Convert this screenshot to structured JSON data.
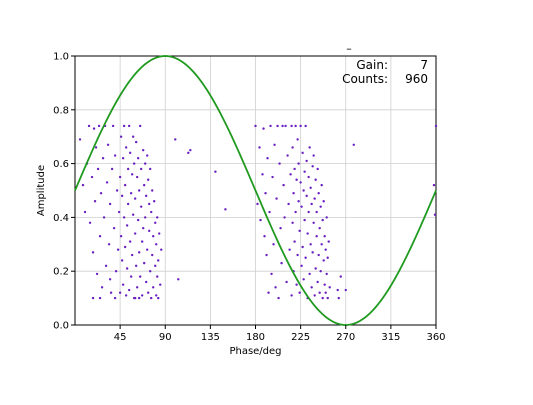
{
  "chart_data": {
    "type": "scatter",
    "xlabel": "Phase/deg",
    "ylabel": "Amplitude",
    "xlim": [
      0,
      360
    ],
    "ylim": [
      0,
      1.0
    ],
    "xticks": [
      45,
      90,
      135,
      180,
      225,
      270,
      315,
      360
    ],
    "xtick_labels": [
      "45",
      "90",
      "135",
      "180",
      "225",
      "270",
      "315",
      "360"
    ],
    "yticks": [
      0.0,
      0.2,
      0.4,
      0.6,
      0.8,
      1.0
    ],
    "ytick_labels": [
      "0.0",
      "0.2",
      "0.4",
      "0.6",
      "0.8",
      "1.0"
    ],
    "grid": true,
    "annotation": {
      "mark": "–",
      "rows": [
        {
          "label": "Gain:",
          "value": "7"
        },
        {
          "label": "Counts:",
          "value": "960"
        }
      ]
    },
    "series": [
      {
        "kind": "line",
        "color": "#1f9a1f",
        "function": "0.5 + 0.5*sin(x)",
        "note": "sine fit, peak at 90 deg, minimum at 270 deg"
      },
      {
        "kind": "scatter",
        "color": "#6a1fc0",
        "points": [
          [
            5,
            0.69
          ],
          [
            8,
            0.52
          ],
          [
            10,
            0.42
          ],
          [
            12,
            0.6
          ],
          [
            14,
            0.74
          ],
          [
            15,
            0.38
          ],
          [
            17,
            0.55
          ],
          [
            18,
            0.27
          ],
          [
            19,
            0.73
          ],
          [
            20,
            0.46
          ],
          [
            21,
            0.66
          ],
          [
            22,
            0.19
          ],
          [
            23,
            0.58
          ],
          [
            24,
            0.74
          ],
          [
            25,
            0.33
          ],
          [
            26,
            0.49
          ],
          [
            27,
            0.14
          ],
          [
            28,
            0.62
          ],
          [
            29,
            0.4
          ],
          [
            30,
            0.74
          ],
          [
            31,
            0.22
          ],
          [
            32,
            0.53
          ],
          [
            33,
            0.67
          ],
          [
            34,
            0.3
          ],
          [
            35,
            0.45
          ],
          [
            36,
            0.12
          ],
          [
            37,
            0.58
          ],
          [
            38,
            0.74
          ],
          [
            39,
            0.36
          ],
          [
            40,
            0.63
          ],
          [
            41,
            0.2
          ],
          [
            42,
            0.5
          ],
          [
            43,
            0.28
          ],
          [
            44,
            0.42
          ],
          [
            45,
            0.12
          ],
          [
            45,
            0.55
          ],
          [
            46,
            0.7
          ],
          [
            46,
            0.33
          ],
          [
            47,
            0.24
          ],
          [
            47,
            0.48
          ],
          [
            48,
            0.62
          ],
          [
            48,
            0.15
          ],
          [
            49,
            0.4
          ],
          [
            49,
            0.74
          ],
          [
            50,
            0.29
          ],
          [
            50,
            0.52
          ],
          [
            51,
            0.11
          ],
          [
            51,
            0.66
          ],
          [
            52,
            0.37
          ],
          [
            52,
            0.21
          ],
          [
            53,
            0.58
          ],
          [
            53,
            0.45
          ],
          [
            54,
            0.74
          ],
          [
            54,
            0.13
          ],
          [
            55,
            0.31
          ],
          [
            55,
            0.64
          ],
          [
            56,
            0.49
          ],
          [
            56,
            0.18
          ],
          [
            57,
            0.56
          ],
          [
            57,
            0.26
          ],
          [
            58,
            0.7
          ],
          [
            58,
            0.41
          ],
          [
            59,
            0.1
          ],
          [
            59,
            0.6
          ],
          [
            60,
            0.34
          ],
          [
            60,
            0.47
          ],
          [
            61,
            0.22
          ],
          [
            61,
            0.68
          ],
          [
            62,
            0.55
          ],
          [
            62,
            0.14
          ],
          [
            63,
            0.39
          ],
          [
            63,
            0.62
          ],
          [
            64,
            0.27
          ],
          [
            64,
            0.5
          ],
          [
            65,
            0.74
          ],
          [
            65,
            0.18
          ],
          [
            66,
            0.44
          ],
          [
            66,
            0.58
          ],
          [
            67,
            0.31
          ],
          [
            67,
            0.11
          ],
          [
            68,
            0.65
          ],
          [
            68,
            0.36
          ],
          [
            69,
            0.52
          ],
          [
            69,
            0.23
          ],
          [
            70,
            0.4
          ],
          [
            70,
            0.6
          ],
          [
            71,
            0.16
          ],
          [
            71,
            0.48
          ],
          [
            72,
            0.28
          ],
          [
            72,
            0.63
          ],
          [
            73,
            0.12
          ],
          [
            73,
            0.54
          ],
          [
            74,
            0.35
          ],
          [
            74,
            0.45
          ],
          [
            75,
            0.2
          ],
          [
            75,
            0.58
          ],
          [
            76,
            0.1
          ],
          [
            76,
            0.42
          ],
          [
            77,
            0.26
          ],
          [
            77,
            0.5
          ],
          [
            78,
            0.33
          ],
          [
            78,
            0.14
          ],
          [
            79,
            0.46
          ],
          [
            80,
            0.22
          ],
          [
            80,
            0.38
          ],
          [
            81,
            0.11
          ],
          [
            81,
            0.3
          ],
          [
            82,
            0.18
          ],
          [
            82,
            0.4
          ],
          [
            83,
            0.1
          ],
          [
            83,
            0.24
          ],
          [
            84,
            0.34
          ],
          [
            85,
            0.15
          ],
          [
            86,
            0.28
          ],
          [
            18,
            0.1
          ],
          [
            25,
            0.1
          ],
          [
            35,
            0.17
          ],
          [
            40,
            0.1
          ],
          [
            60,
            0.1
          ],
          [
            64,
            0.1
          ],
          [
            100,
            0.69
          ],
          [
            103,
            0.17
          ],
          [
            113,
            0.64
          ],
          [
            115,
            0.65
          ],
          [
            140,
            0.57
          ],
          [
            150,
            0.43
          ],
          [
            180,
            0.74
          ],
          [
            182,
            0.45
          ],
          [
            184,
            0.66
          ],
          [
            185,
            0.39
          ],
          [
            187,
            0.56
          ],
          [
            188,
            0.73
          ],
          [
            189,
            0.33
          ],
          [
            190,
            0.49
          ],
          [
            191,
            0.26
          ],
          [
            192,
            0.62
          ],
          [
            193,
            0.12
          ],
          [
            194,
            0.42
          ],
          [
            195,
            0.74
          ],
          [
            196,
            0.19
          ],
          [
            197,
            0.55
          ],
          [
            198,
            0.3
          ],
          [
            199,
            0.67
          ],
          [
            200,
            0.14
          ],
          [
            201,
            0.47
          ],
          [
            202,
            0.74
          ],
          [
            203,
            0.1
          ],
          [
            204,
            0.6
          ],
          [
            205,
            0.36
          ],
          [
            206,
            0.23
          ],
          [
            207,
            0.74
          ],
          [
            208,
            0.52
          ],
          [
            209,
            0.4
          ],
          [
            210,
            0.74
          ],
          [
            211,
            0.16
          ],
          [
            212,
            0.63
          ],
          [
            213,
            0.45
          ],
          [
            214,
            0.28
          ],
          [
            215,
            0.56
          ],
          [
            216,
            0.74
          ],
          [
            216,
            0.11
          ],
          [
            217,
            0.38
          ],
          [
            217,
            0.66
          ],
          [
            218,
            0.2
          ],
          [
            218,
            0.49
          ],
          [
            219,
            0.58
          ],
          [
            219,
            0.31
          ],
          [
            220,
            0.74
          ],
          [
            220,
            0.42
          ],
          [
            221,
            0.15
          ],
          [
            221,
            0.54
          ],
          [
            222,
            0.69
          ],
          [
            222,
            0.26
          ],
          [
            223,
            0.46
          ],
          [
            223,
            0.6
          ],
          [
            224,
            0.35
          ],
          [
            224,
            0.12
          ],
          [
            225,
            0.53
          ],
          [
            225,
            0.74
          ],
          [
            226,
            0.22
          ],
          [
            226,
            0.44
          ],
          [
            227,
            0.64
          ],
          [
            227,
            0.29
          ],
          [
            228,
            0.5
          ],
          [
            228,
            0.17
          ],
          [
            229,
            0.57
          ],
          [
            229,
            0.39
          ],
          [
            230,
            0.74
          ],
          [
            230,
            0.25
          ],
          [
            231,
            0.48
          ],
          [
            231,
            0.61
          ],
          [
            232,
            0.1
          ],
          [
            232,
            0.34
          ],
          [
            233,
            0.55
          ],
          [
            233,
            0.42
          ],
          [
            234,
            0.19
          ],
          [
            234,
            0.66
          ],
          [
            235,
            0.3
          ],
          [
            235,
            0.51
          ],
          [
            236,
            0.14
          ],
          [
            236,
            0.45
          ],
          [
            237,
            0.59
          ],
          [
            237,
            0.27
          ],
          [
            238,
            0.38
          ],
          [
            238,
            0.63
          ],
          [
            239,
            0.11
          ],
          [
            239,
            0.47
          ],
          [
            240,
            0.21
          ],
          [
            240,
            0.54
          ],
          [
            241,
            0.33
          ],
          [
            241,
            0.42
          ],
          [
            242,
            0.16
          ],
          [
            242,
            0.58
          ],
          [
            243,
            0.26
          ],
          [
            243,
            0.49
          ],
          [
            244,
            0.12
          ],
          [
            244,
            0.36
          ],
          [
            245,
            0.44
          ],
          [
            245,
            0.2
          ],
          [
            246,
            0.3
          ],
          [
            246,
            0.52
          ],
          [
            247,
            0.1
          ],
          [
            247,
            0.39
          ],
          [
            248,
            0.24
          ],
          [
            248,
            0.46
          ],
          [
            249,
            0.15
          ],
          [
            249,
            0.33
          ],
          [
            250,
            0.28
          ],
          [
            250,
            0.12
          ],
          [
            251,
            0.4
          ],
          [
            251,
            0.19
          ],
          [
            252,
            0.1
          ],
          [
            252,
            0.25
          ],
          [
            253,
            0.31
          ],
          [
            254,
            0.14
          ],
          [
            262,
            0.13
          ],
          [
            263,
            0.1
          ],
          [
            265,
            0.18
          ],
          [
            270,
            0.13
          ],
          [
            278,
            0.67
          ],
          [
            360,
            0.74
          ],
          [
            358,
            0.52
          ],
          [
            359,
            0.41
          ]
        ]
      }
    ]
  }
}
